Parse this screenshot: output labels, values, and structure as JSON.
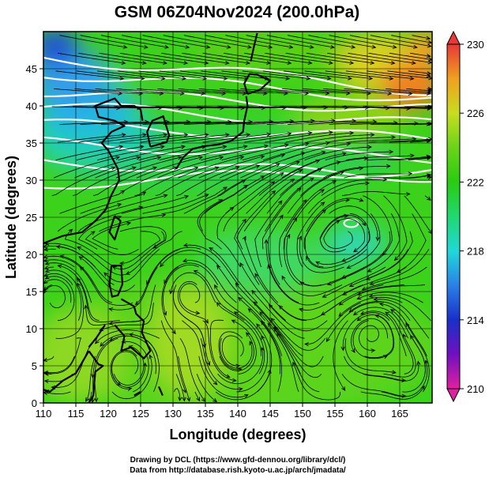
{
  "title": "GSM 06Z04Nov2024 (200.0hPa)",
  "xlabel": "Longitude (degrees)",
  "ylabel": "Latitude  (degrees)",
  "credits": [
    "Drawing by DCL (https://www.gfd-dennou.org/library/dcl/)",
    "Data from http://database.rish.kyoto-u.ac.jp/arch/jmadata/"
  ],
  "map": {
    "type": "streamline map over shaded geopotential height",
    "lon_range": [
      110,
      170
    ],
    "lat_range": [
      0,
      50
    ],
    "lon_ticks": [
      110,
      115,
      120,
      125,
      130,
      135,
      140,
      145,
      150,
      155,
      160,
      165
    ],
    "lat_ticks": [
      0,
      5,
      10,
      15,
      20,
      25,
      30,
      35,
      40,
      45
    ],
    "grid": true,
    "contour_color": "#ffffff"
  },
  "colorbar": {
    "range": [
      210,
      230
    ],
    "labels": [
      "230",
      "226",
      "222",
      "218",
      "214",
      "210"
    ],
    "stops": [
      {
        "value": 210,
        "color": "#e020a0"
      },
      {
        "value": 212,
        "color": "#7010c0"
      },
      {
        "value": 214,
        "color": "#1830c8"
      },
      {
        "value": 216,
        "color": "#2a80e8"
      },
      {
        "value": 218,
        "color": "#20d8d8"
      },
      {
        "value": 220,
        "color": "#20d870"
      },
      {
        "value": 222,
        "color": "#28cc10"
      },
      {
        "value": 224,
        "color": "#6ad418"
      },
      {
        "value": 226,
        "color": "#c8dc20"
      },
      {
        "value": 228,
        "color": "#f0a020"
      },
      {
        "value": 230,
        "color": "#e83838"
      }
    ]
  }
}
